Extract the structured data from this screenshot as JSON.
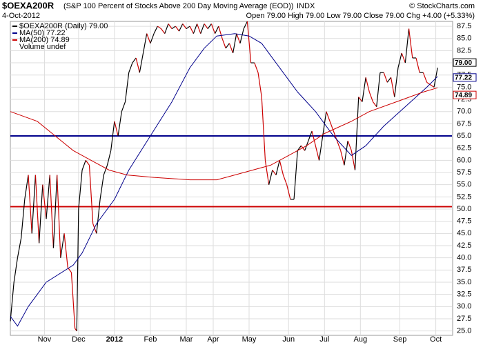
{
  "chart_data": {
    "type": "line",
    "symbol": "$OEXA200R",
    "title": "(S&P 100 Percent of Stocks Above 200 Day Moving Average (EOD))",
    "exchange": "INDX",
    "date": "4-Oct-2012",
    "quote": "Open 79.00 High 79.00 Low 79.00 Close 79.00 Chg +4.00 (+5.33%)",
    "credit": "© StockCharts.com",
    "legend_extra": "Volume undef",
    "grid": true,
    "xlim": [
      0,
      246
    ],
    "xticks": [
      {
        "value": 19,
        "label": "Nov"
      },
      {
        "value": 38,
        "label": "Dec"
      },
      {
        "value": 58,
        "label": "2012"
      },
      {
        "value": 78,
        "label": "Feb"
      },
      {
        "value": 98,
        "label": "Mar"
      },
      {
        "value": 113,
        "label": "Apr"
      },
      {
        "value": 133,
        "label": "May"
      },
      {
        "value": 155,
        "label": "Jun"
      },
      {
        "value": 175,
        "label": "Jul"
      },
      {
        "value": 195,
        "label": "Aug"
      },
      {
        "value": 217,
        "label": "Sep"
      },
      {
        "value": 237,
        "label": "Oct"
      }
    ],
    "ylim": [
      24.1,
      88.5
    ],
    "yticks": [
      {
        "value": 25,
        "label": "25.0"
      },
      {
        "value": 27.5,
        "label": "27.5"
      },
      {
        "value": 30,
        "label": "30.0"
      },
      {
        "value": 32.5,
        "label": "32.5"
      },
      {
        "value": 35,
        "label": "35.0"
      },
      {
        "value": 37.5,
        "label": "37.5"
      },
      {
        "value": 40,
        "label": "40.0"
      },
      {
        "value": 42.5,
        "label": "42.5"
      },
      {
        "value": 45,
        "label": "45.0"
      },
      {
        "value": 47.5,
        "label": "47.5"
      },
      {
        "value": 50,
        "label": "50.0"
      },
      {
        "value": 52.5,
        "label": "52.5"
      },
      {
        "value": 55,
        "label": "55.0"
      },
      {
        "value": 57.5,
        "label": "57.5"
      },
      {
        "value": 60,
        "label": "60.0"
      },
      {
        "value": 62.5,
        "label": "62.5"
      },
      {
        "value": 65,
        "label": "65.0"
      },
      {
        "value": 67.5,
        "label": "67.5"
      },
      {
        "value": 70,
        "label": "70.0"
      },
      {
        "value": 72.5,
        "label": "72.5"
      },
      {
        "value": 75,
        "label": "75.0"
      },
      {
        "value": 77.5,
        "label": "77.5"
      },
      {
        "value": 80,
        "label": "80.0"
      },
      {
        "value": 82.5,
        "label": "82.5"
      },
      {
        "value": 85,
        "label": "85.0"
      },
      {
        "value": 87.5,
        "label": "87.5"
      }
    ],
    "reference_lines": [
      {
        "value": 65,
        "color": "#00008b"
      },
      {
        "value": 50.5,
        "color": "#cc0000"
      }
    ],
    "series": [
      {
        "name": "$OEXA200R (Daily) 79.00",
        "color": "#000000",
        "down_color": "#cc0000",
        "tag": "79.00",
        "x": [
          0,
          2,
          4,
          6,
          8,
          10,
          12,
          14,
          16,
          18,
          20,
          22,
          24,
          26,
          28,
          30,
          32,
          34,
          36,
          37,
          38,
          40,
          42,
          44,
          46,
          48,
          50,
          52,
          54,
          56,
          58,
          60,
          62,
          64,
          66,
          68,
          70,
          72,
          74,
          76,
          78,
          80,
          82,
          84,
          86,
          88,
          90,
          92,
          94,
          96,
          98,
          100,
          102,
          104,
          106,
          108,
          110,
          112,
          114,
          116,
          118,
          120,
          122,
          124,
          126,
          128,
          130,
          132,
          134,
          136,
          138,
          140,
          142,
          144,
          146,
          148,
          150,
          152,
          154,
          156,
          158,
          160,
          162,
          164,
          166,
          168,
          170,
          172,
          174,
          176,
          178,
          180,
          182,
          184,
          186,
          188,
          190,
          192,
          194,
          196,
          198,
          200,
          202,
          204,
          206,
          208,
          210,
          212,
          214,
          216,
          218,
          220,
          222,
          224,
          226,
          228,
          230,
          232,
          234,
          236,
          238
        ],
        "values": [
          27,
          35,
          40,
          44,
          52,
          57,
          45,
          57,
          43,
          55,
          48,
          57,
          42,
          57,
          40,
          45,
          38,
          37,
          25.5,
          25,
          50,
          58,
          60,
          59,
          47,
          45,
          52,
          57,
          59,
          62,
          68,
          65,
          70,
          72,
          78,
          80,
          81,
          78,
          82,
          86,
          84,
          86,
          87.5,
          87,
          86,
          88,
          87,
          87.5,
          86.5,
          88,
          87,
          87.5,
          86,
          88,
          86,
          88,
          87,
          88,
          86,
          87.5,
          85,
          83,
          84,
          82,
          86,
          84,
          87,
          88.5,
          80,
          80,
          78,
          73,
          60,
          55,
          58,
          57,
          60,
          57,
          55,
          52,
          52,
          62,
          63,
          62,
          64,
          66,
          63,
          60,
          65,
          70,
          68,
          66,
          64,
          62,
          59,
          64,
          62,
          58,
          73,
          72,
          77,
          74,
          72,
          71,
          78,
          78,
          76,
          77,
          73,
          79,
          82,
          80,
          87,
          81,
          81,
          78,
          78,
          76,
          75.5,
          75,
          79
        ]
      },
      {
        "name": "MA(50) 77.22",
        "color": "#00008b",
        "tag": "77.22",
        "x": [
          0,
          4,
          10,
          20,
          35,
          40,
          48,
          58,
          66,
          78,
          90,
          100,
          108,
          115,
          125,
          133,
          140,
          148,
          160,
          170,
          180,
          190,
          198,
          208,
          220,
          232,
          238
        ],
        "values": [
          28,
          26,
          30,
          35,
          38.5,
          41,
          47,
          52,
          58,
          65,
          72,
          79,
          83,
          85.5,
          86,
          85.5,
          84,
          80,
          74,
          70,
          65,
          61,
          63,
          67,
          71,
          75,
          77.2
        ]
      },
      {
        "name": "MA(200) 74.89",
        "color": "#cc0000",
        "tag": "74.89",
        "x": [
          0,
          15,
          25,
          35,
          45,
          55,
          65,
          80,
          100,
          115,
          125,
          135,
          145,
          155,
          165,
          175,
          190,
          200,
          215,
          230,
          238
        ],
        "values": [
          70,
          68,
          65,
          62,
          60,
          58,
          57,
          56.5,
          56,
          56,
          57,
          58,
          59,
          61,
          63,
          65.5,
          68,
          70,
          72,
          74,
          74.89
        ]
      }
    ]
  }
}
